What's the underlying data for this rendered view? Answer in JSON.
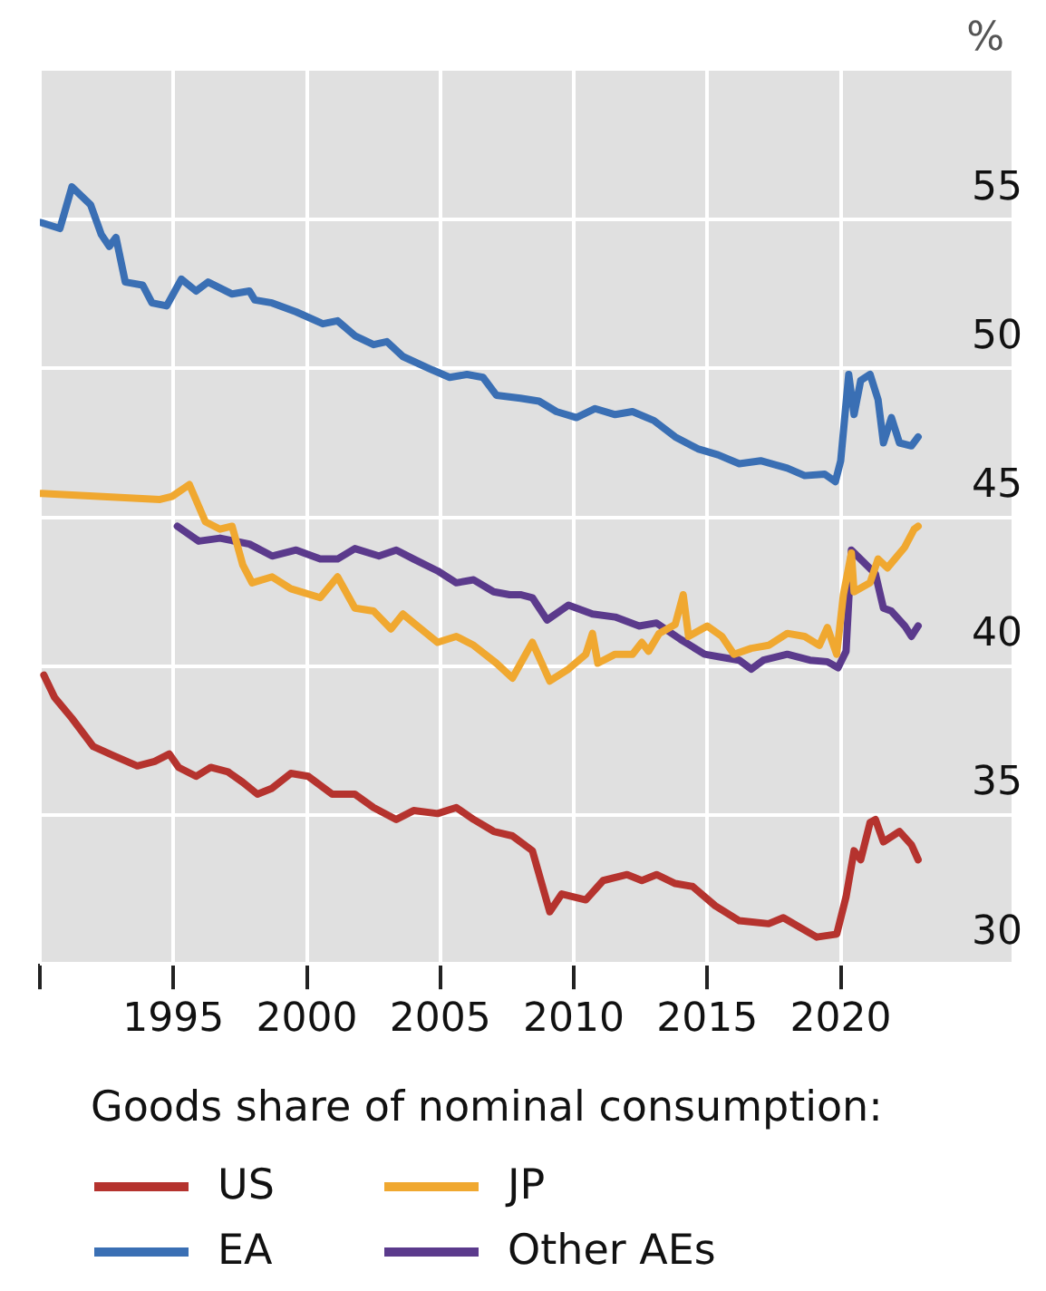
{
  "chart_data": {
    "type": "line",
    "ylabel": "%",
    "legend_title": "Goods share of nominal consumption:",
    "legend": "bottom",
    "grid": true,
    "xlim": [
      1990,
      2026.4
    ],
    "xticks": [
      {
        "value": 1990,
        "label": null
      },
      1995,
      2000,
      2005,
      2010,
      2015,
      2020
    ],
    "ylim": [
      30,
      60
    ],
    "yticks": [
      30,
      35,
      40,
      45,
      50,
      55
    ],
    "series": [
      {
        "name": "US",
        "color": "#b5332e",
        "x": [
          1990.15,
          1990.55,
          1991.2,
          1992.0,
          1992.75,
          1993.65,
          1994.3,
          1994.85,
          1995.2,
          1995.85,
          1996.4,
          1997.05,
          1997.6,
          1998.15,
          1998.7,
          1999.4,
          2000.05,
          2000.95,
          2001.8,
          2002.5,
          2003.35,
          2004.0,
          2004.9,
          2005.6,
          2006.25,
          2007.0,
          2007.7,
          2008.45,
          2009.1,
          2009.55,
          2010.45,
          2011.1,
          2012.0,
          2012.55,
          2013.1,
          2013.8,
          2014.45,
          2015.3,
          2016.2,
          2017.3,
          2017.85,
          2019.1,
          2019.85,
          2020.2,
          2020.5,
          2020.75,
          2021.1,
          2021.3,
          2021.6,
          2022.2,
          2022.65,
          2022.9
        ],
        "values": [
          39.7,
          38.95,
          38.25,
          37.3,
          37.0,
          36.65,
          36.8,
          37.05,
          36.6,
          36.3,
          36.6,
          36.45,
          36.1,
          35.7,
          35.9,
          36.4,
          36.3,
          35.7,
          35.7,
          35.25,
          34.85,
          35.15,
          35.05,
          35.25,
          34.85,
          34.45,
          34.3,
          33.8,
          31.75,
          32.35,
          32.15,
          32.8,
          33.0,
          32.8,
          33.0,
          32.7,
          32.6,
          31.95,
          31.45,
          31.35,
          31.55,
          30.9,
          31.0,
          32.25,
          33.8,
          33.5,
          34.75,
          34.85,
          34.1,
          34.45,
          34.0,
          33.5
        ]
      },
      {
        "name": "EA",
        "color": "#3a6fb4",
        "x": [
          1990.05,
          1990.75,
          1991.2,
          1991.9,
          1992.3,
          1992.6,
          1992.85,
          1993.2,
          1993.85,
          1994.2,
          1994.75,
          1995.3,
          1995.85,
          1996.3,
          1997.2,
          1997.85,
          1998.05,
          1998.7,
          1999.6,
          2000.6,
          2001.15,
          2001.8,
          2002.5,
          2003.0,
          2003.6,
          2004.7,
          2005.35,
          2006.0,
          2006.6,
          2007.1,
          2008.0,
          2008.7,
          2009.35,
          2010.1,
          2010.8,
          2011.55,
          2012.2,
          2013.0,
          2013.8,
          2014.65,
          2015.4,
          2016.2,
          2017.0,
          2018.0,
          2018.65,
          2019.4,
          2019.8,
          2020.0,
          2020.3,
          2020.5,
          2020.75,
          2021.1,
          2021.4,
          2021.6,
          2021.9,
          2022.2,
          2022.65,
          2022.9
        ],
        "values": [
          54.9,
          54.7,
          56.1,
          55.5,
          54.5,
          54.1,
          54.4,
          52.9,
          52.8,
          52.2,
          52.1,
          53.0,
          52.6,
          52.9,
          52.5,
          52.6,
          52.3,
          52.2,
          51.9,
          51.5,
          51.6,
          51.1,
          50.8,
          50.9,
          50.4,
          49.95,
          49.7,
          49.8,
          49.7,
          49.1,
          49.0,
          48.9,
          48.55,
          48.35,
          48.65,
          48.45,
          48.55,
          48.25,
          47.7,
          47.3,
          47.1,
          46.8,
          46.9,
          46.65,
          46.4,
          46.45,
          46.2,
          46.9,
          49.8,
          48.45,
          49.6,
          49.8,
          48.95,
          47.5,
          48.35,
          47.5,
          47.4,
          47.7
        ]
      },
      {
        "name": "JP",
        "color": "#f0a830",
        "x": [
          1990.05,
          1994.5,
          1994.95,
          1995.6,
          1996.2,
          1996.75,
          1997.2,
          1997.6,
          1997.95,
          1998.7,
          1999.4,
          2000.5,
          2001.15,
          2001.8,
          2002.5,
          2003.15,
          2003.6,
          2004.0,
          2004.9,
          2005.6,
          2006.25,
          2007.1,
          2007.7,
          2008.45,
          2009.1,
          2009.8,
          2010.45,
          2010.7,
          2010.9,
          2011.55,
          2012.2,
          2012.55,
          2012.8,
          2013.2,
          2013.8,
          2014.1,
          2014.3,
          2015.0,
          2015.55,
          2016.0,
          2016.65,
          2017.3,
          2018.0,
          2018.65,
          2019.2,
          2019.5,
          2019.85,
          2020.1,
          2020.4,
          2020.5,
          2021.1,
          2021.4,
          2021.75,
          2022.4,
          2022.75,
          2022.9
        ],
        "values": [
          45.8,
          45.6,
          45.7,
          46.1,
          44.85,
          44.6,
          44.7,
          43.4,
          42.8,
          43.0,
          42.6,
          42.3,
          43.0,
          41.95,
          41.85,
          41.25,
          41.75,
          41.45,
          40.8,
          41.0,
          40.7,
          40.1,
          39.6,
          40.8,
          39.5,
          39.9,
          40.4,
          41.1,
          40.1,
          40.4,
          40.4,
          40.8,
          40.5,
          41.1,
          41.4,
          42.4,
          41.0,
          41.35,
          41.0,
          40.4,
          40.6,
          40.7,
          41.1,
          41.0,
          40.7,
          41.3,
          40.4,
          42.4,
          43.8,
          42.5,
          42.8,
          43.6,
          43.3,
          44.0,
          44.6,
          44.7
        ]
      },
      {
        "name": "Other AEs",
        "color": "#5b3a8c",
        "x": [
          1995.15,
          1995.95,
          1996.75,
          1997.85,
          1998.7,
          1999.6,
          2000.5,
          2001.15,
          2001.8,
          2002.7,
          2003.35,
          2004.0,
          2004.9,
          2005.6,
          2006.25,
          2007.0,
          2007.6,
          2008.0,
          2008.45,
          2009.0,
          2009.8,
          2010.7,
          2011.55,
          2012.45,
          2013.1,
          2014.0,
          2014.9,
          2015.55,
          2016.2,
          2016.65,
          2017.1,
          2018.0,
          2018.85,
          2019.5,
          2019.9,
          2020.2,
          2020.4,
          2020.85,
          2021.3,
          2021.6,
          2021.9,
          2022.4,
          2022.65,
          2022.9
        ],
        "values": [
          44.7,
          44.2,
          44.3,
          44.1,
          43.7,
          43.9,
          43.6,
          43.6,
          43.95,
          43.7,
          43.9,
          43.6,
          43.2,
          42.8,
          42.9,
          42.5,
          42.4,
          42.4,
          42.3,
          41.55,
          42.05,
          41.75,
          41.65,
          41.35,
          41.45,
          40.9,
          40.4,
          40.3,
          40.2,
          39.9,
          40.2,
          40.4,
          40.2,
          40.15,
          39.95,
          40.5,
          43.9,
          43.5,
          43.1,
          41.95,
          41.85,
          41.35,
          41.0,
          41.35
        ]
      }
    ]
  }
}
